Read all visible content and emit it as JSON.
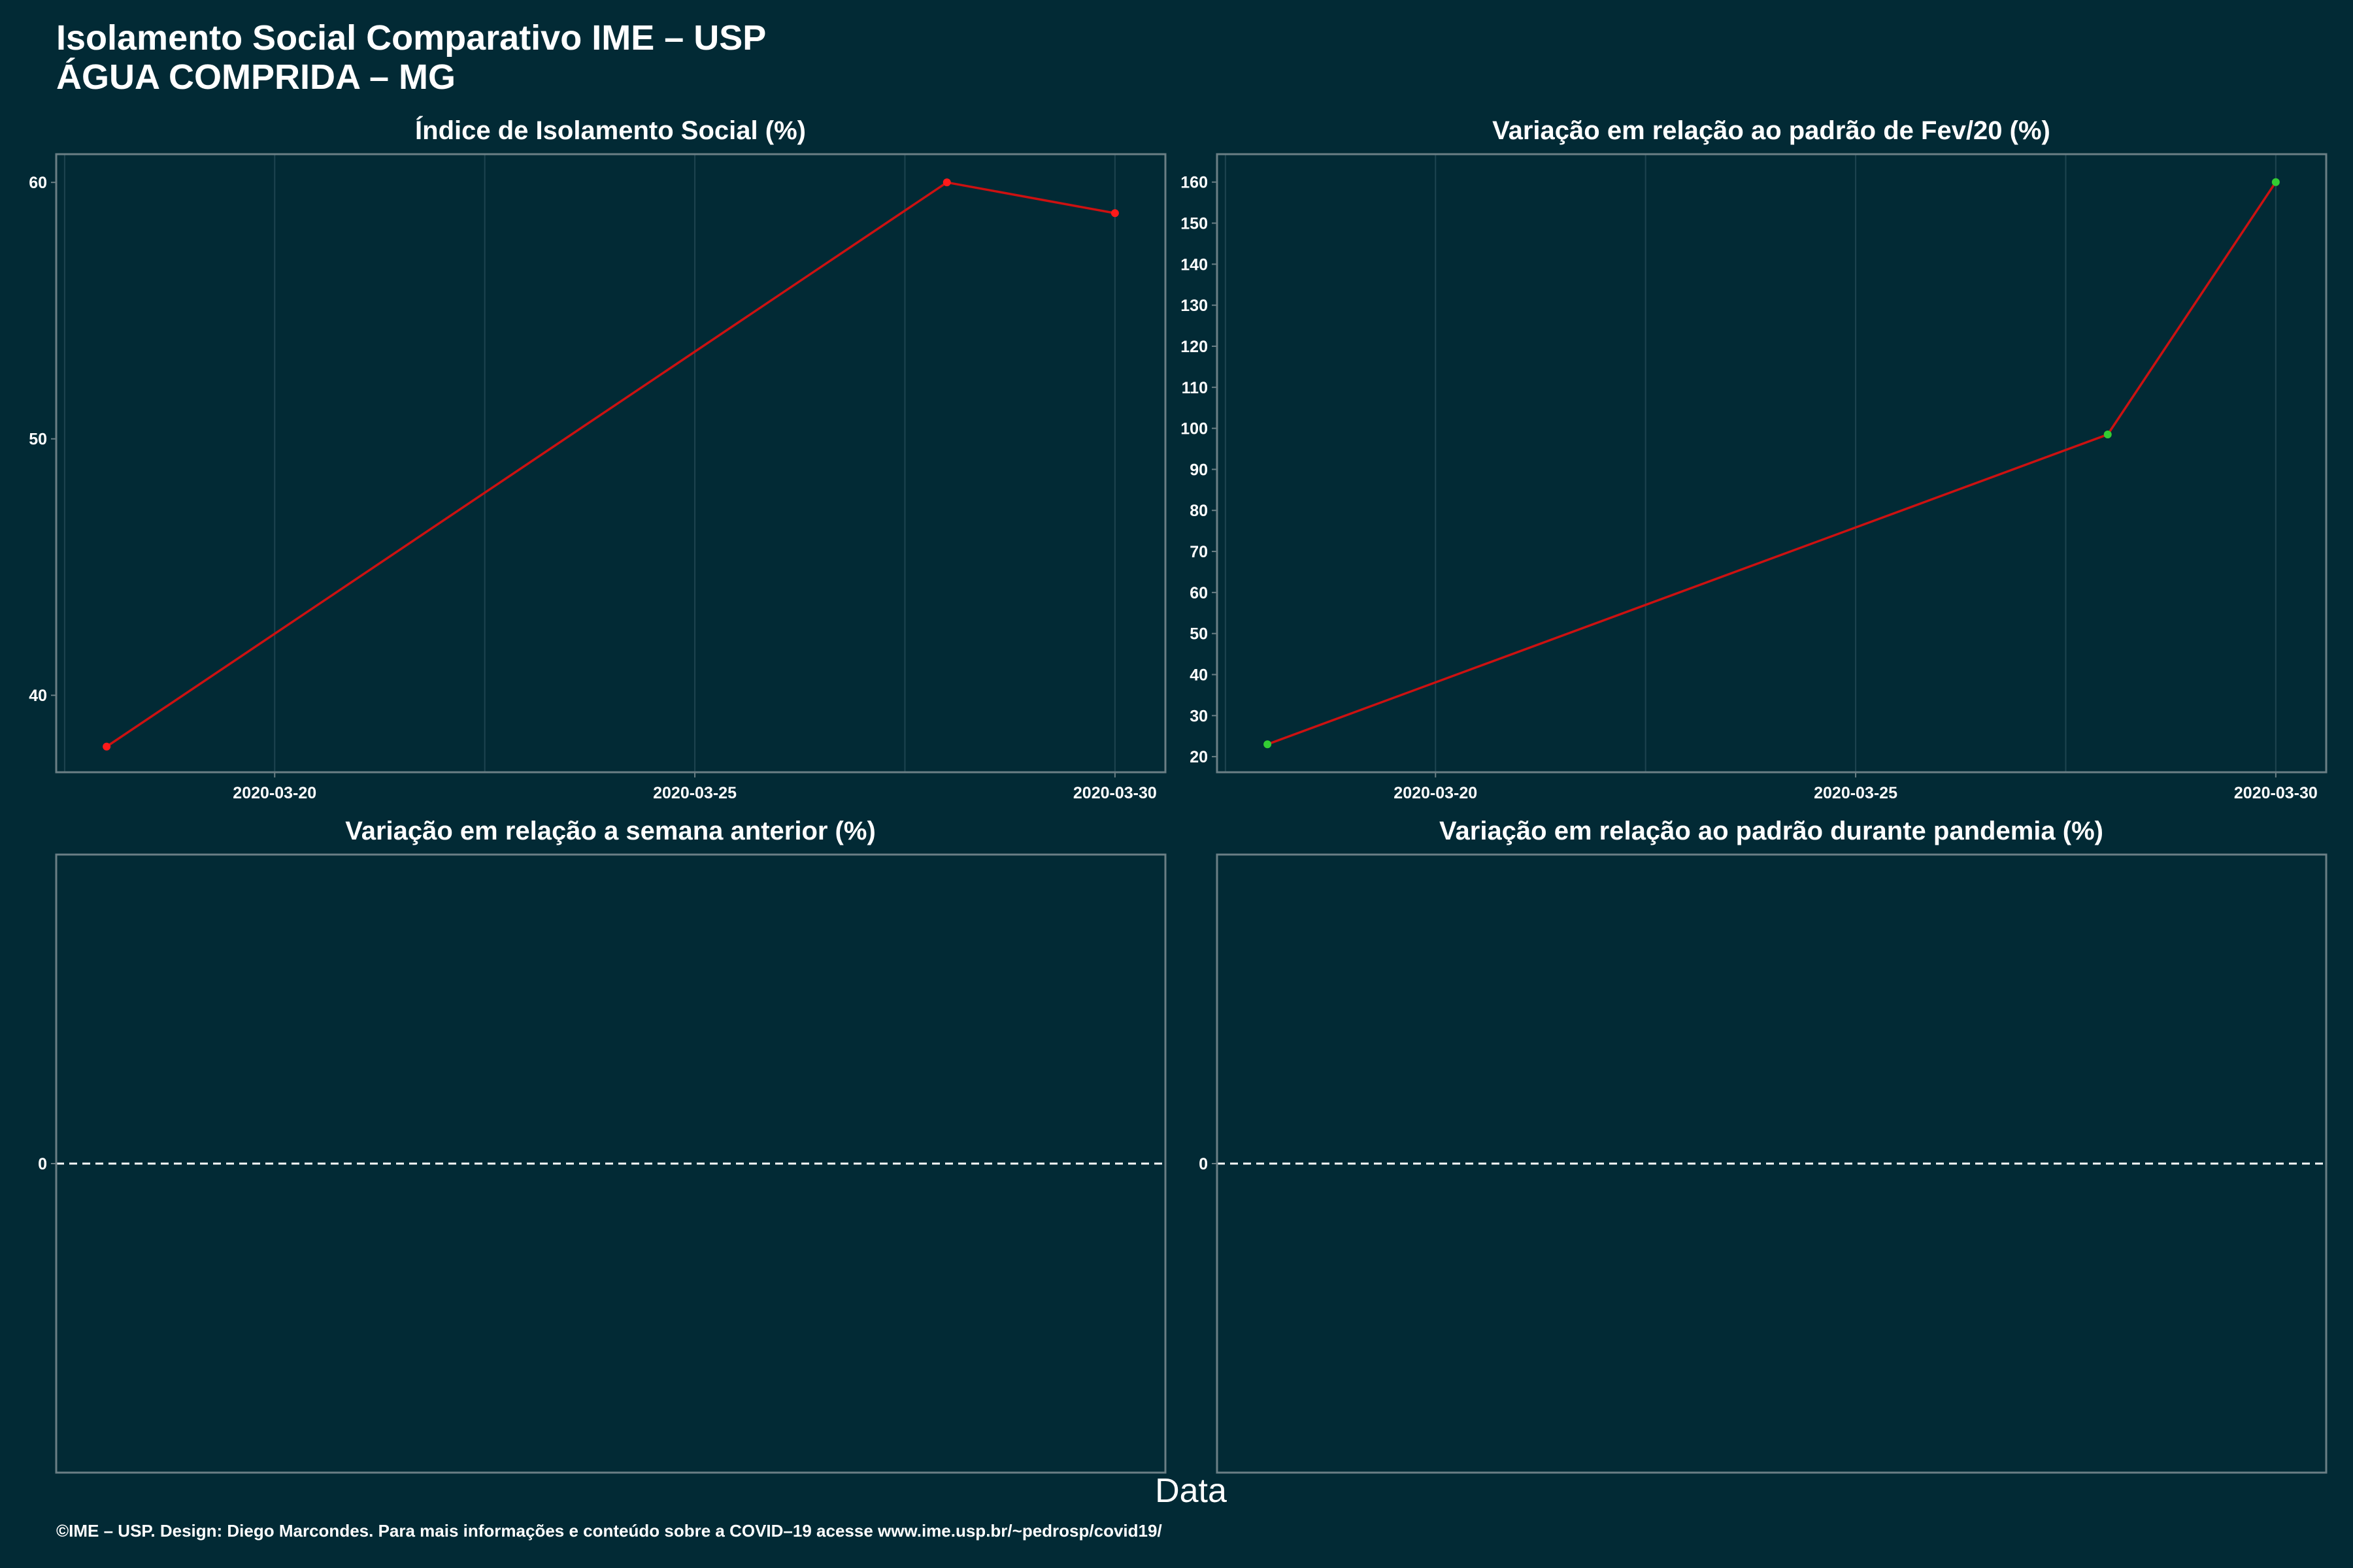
{
  "header": {
    "title": "Isolamento Social Comparativo IME – USP",
    "subtitle": "ÁGUA COMPRIDA – MG"
  },
  "x_axis_label": "Data",
  "footer": "©IME – USP. Design: Diego Marcondes. Para mais informações e conteúdo sobre a COVID–19 acesse www.ime.usp.br/~pedrosp/covid19/",
  "colors": {
    "background": "#022a35",
    "line": "#cc1111",
    "point_red": "#ff1a1a",
    "point_green": "#33cc33",
    "frame": "#6b7f85",
    "grid": "#1e4450"
  },
  "chart_data": [
    {
      "type": "line",
      "title": "Índice de Isolamento Social (%)",
      "x": [
        "2020-03-18",
        "2020-03-28",
        "2020-03-30"
      ],
      "values": [
        38.0,
        60.0,
        58.8
      ],
      "point_colors": [
        "red",
        "red",
        "red"
      ],
      "x_ticks": [
        "2020-03-20",
        "2020-03-25",
        "2020-03-30"
      ],
      "y_ticks": [
        40,
        50,
        60
      ],
      "xlim": [
        "2020-03-17.4",
        "2020-03-30.6"
      ],
      "ylim": [
        37.0,
        61.1
      ],
      "grid": true
    },
    {
      "type": "line",
      "title": "Variação em relação ao padrão de Fev/20 (%)",
      "x": [
        "2020-03-18",
        "2020-03-28",
        "2020-03-30"
      ],
      "values": [
        23,
        98.5,
        160
      ],
      "point_colors": [
        "green",
        "green",
        "green"
      ],
      "x_ticks": [
        "2020-03-20",
        "2020-03-25",
        "2020-03-30"
      ],
      "y_ticks": [
        20,
        30,
        40,
        50,
        60,
        70,
        80,
        90,
        100,
        110,
        120,
        130,
        140,
        150,
        160
      ],
      "xlim": [
        "2020-03-17.4",
        "2020-03-30.6"
      ],
      "ylim": [
        16.2,
        166.8
      ],
      "grid": true
    },
    {
      "type": "line",
      "title": "Variação em relação a semana anterior (%)",
      "x": [],
      "values": [],
      "y_ticks": [
        0
      ],
      "reference_line": 0
    },
    {
      "type": "line",
      "title": "Variação em relação ao padrão durante pandemia (%)",
      "x": [],
      "values": [],
      "y_ticks": [
        0
      ],
      "reference_line": 0
    }
  ]
}
